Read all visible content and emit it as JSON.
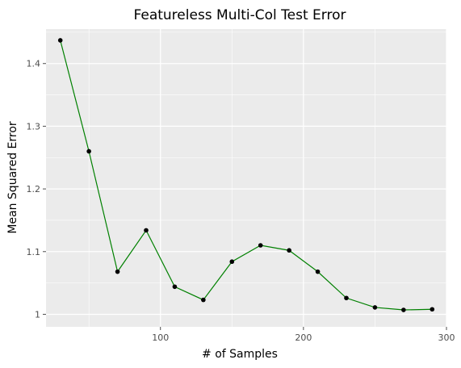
{
  "chart_data": {
    "type": "line",
    "title": "Featureless Multi-Col Test Error",
    "xlabel": "# of Samples",
    "ylabel": "Mean Squared Error",
    "xlim": [
      20,
      300
    ],
    "ylim": [
      0.98,
      1.455
    ],
    "xticks": [
      100,
      200,
      300
    ],
    "xtick_labels": [
      "100",
      "200",
      "300"
    ],
    "yticks": [
      1.0,
      1.1,
      1.2,
      1.3,
      1.4
    ],
    "ytick_labels": [
      "1",
      "1.1",
      "1.2",
      "1.3",
      "1.4"
    ],
    "grid": true,
    "legend": "none",
    "series": [
      {
        "color": "#008000",
        "marker_color": "#000000",
        "x": [
          30,
          50,
          70,
          90,
          110,
          130,
          150,
          170,
          190,
          210,
          230,
          250,
          270,
          290
        ],
        "y": [
          1.437,
          1.26,
          1.068,
          1.134,
          1.044,
          1.023,
          1.084,
          1.11,
          1.102,
          1.068,
          1.026,
          1.011,
          1.007,
          1.008
        ]
      }
    ],
    "colors": {
      "panel": "#ebebeb",
      "grid": "#ffffff",
      "tick": "#4d4d4d"
    }
  }
}
